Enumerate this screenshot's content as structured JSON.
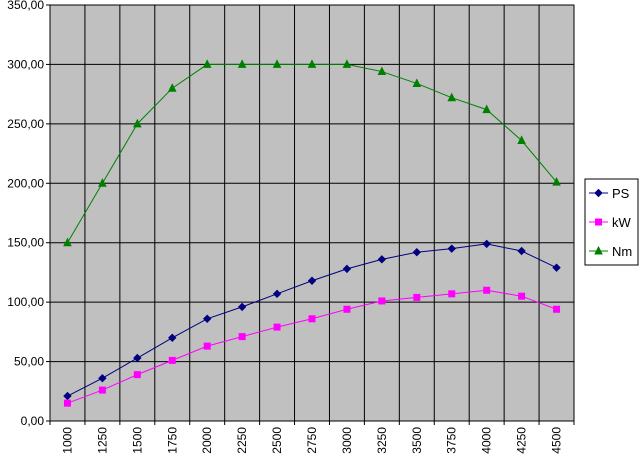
{
  "chart_data": {
    "type": "line",
    "title": "",
    "xlabel": "",
    "ylabel": "",
    "categories": [
      "1000",
      "1250",
      "1500",
      "1750",
      "2000",
      "2250",
      "2500",
      "2750",
      "3000",
      "3250",
      "3500",
      "3750",
      "4000",
      "4250",
      "4500"
    ],
    "ylim": [
      0,
      350
    ],
    "yticks": [
      "0,00",
      "50,00",
      "100,00",
      "150,00",
      "200,00",
      "250,00",
      "300,00",
      "350,00"
    ],
    "grid": true,
    "legend_position": "right",
    "plot_background": "#c0c0c0",
    "series": [
      {
        "name": "PS",
        "color": "#000080",
        "marker": "diamond",
        "values": [
          21,
          36,
          53,
          70,
          86,
          96,
          107,
          118,
          128,
          136,
          142,
          145,
          149,
          143,
          129
        ]
      },
      {
        "name": "kW",
        "color": "#ff00ff",
        "marker": "square",
        "values": [
          15,
          26,
          39,
          51,
          63,
          71,
          79,
          86,
          94,
          101,
          104,
          107,
          110,
          105,
          94
        ]
      },
      {
        "name": "Nm",
        "color": "#008000",
        "marker": "triangle",
        "values": [
          150,
          200,
          250,
          280,
          300,
          300,
          300,
          300,
          300,
          294,
          284,
          272,
          262,
          236,
          201
        ]
      }
    ]
  }
}
